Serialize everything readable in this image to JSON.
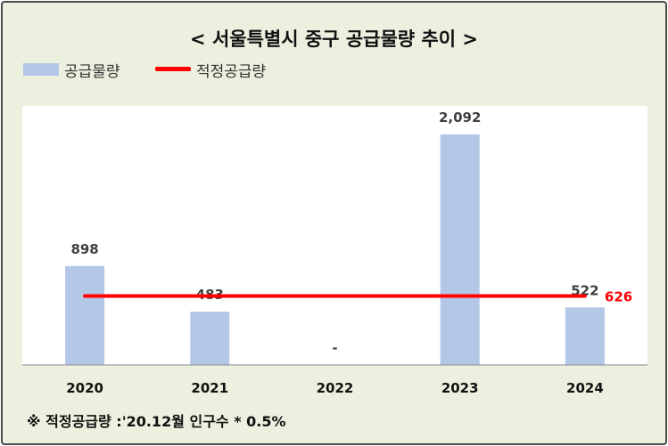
{
  "title": "< 서울특별시 중구 공급물량 추이 >",
  "legend": {
    "bar_label": "공급물량",
    "line_label": "적정공급량"
  },
  "footnote": "※ 적정공급량 :'20.12월 인구수 * 0.5%",
  "colors": {
    "background": "#ebf1de",
    "bar": "#b4c7e7",
    "line": "#ff0000"
  },
  "chart_data": {
    "type": "bar",
    "title": "< 서울특별시 중구 공급물량 추이 >",
    "categories": [
      "2020",
      "2021",
      "2022",
      "2023",
      "2024"
    ],
    "series": [
      {
        "name": "공급물량",
        "type": "bar",
        "values": [
          898,
          483,
          0,
          2092,
          522
        ],
        "labels": [
          "898",
          "483",
          "-",
          "2,092",
          "522"
        ]
      },
      {
        "name": "적정공급량",
        "type": "line",
        "values": [
          626,
          626,
          626,
          626,
          626
        ],
        "end_label": "626"
      }
    ],
    "ylim": [
      0,
      2350
    ],
    "grid": false,
    "legend_position": "top-left"
  }
}
